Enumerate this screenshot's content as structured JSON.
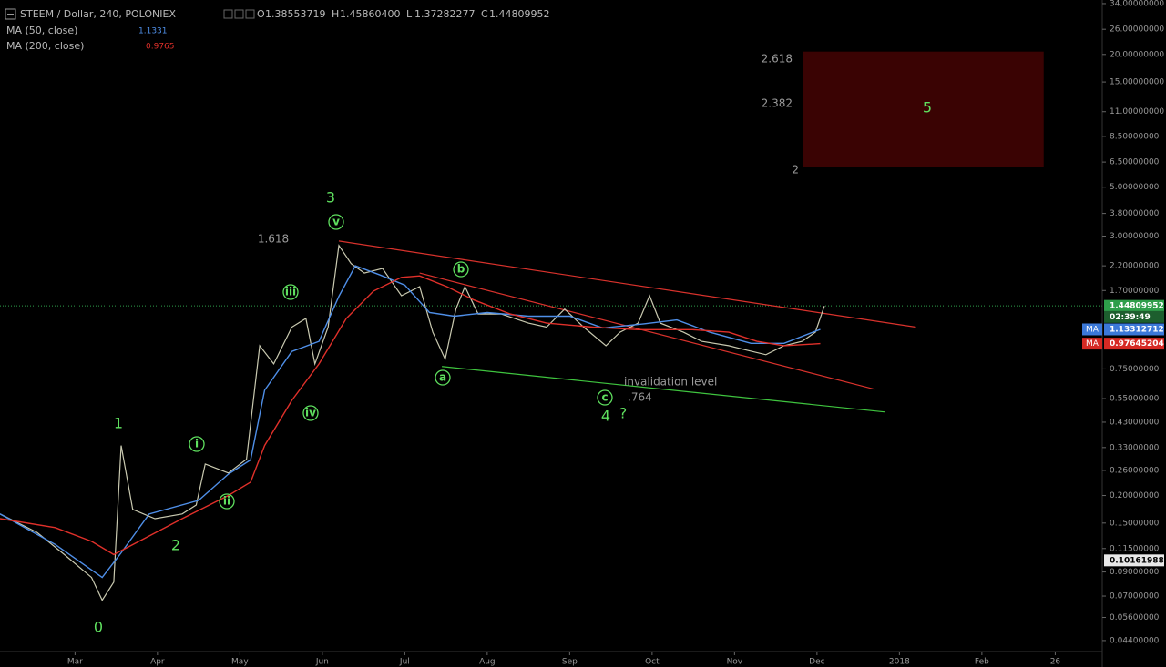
{
  "chart_data": {
    "type": "line",
    "title": "STEEM / Dollar, 240, POLONIEX",
    "ohlc": [
      {
        "label": "O",
        "value": "1.38553719"
      },
      {
        "label": "H",
        "value": "1.45860400"
      },
      {
        "label": "L",
        "value": "1.37282277"
      },
      {
        "label": "C",
        "value": "1.44809952"
      }
    ],
    "log_scale": true,
    "xlim": [
      2.09,
      15.46
    ],
    "ylim": [
      0.0396,
      35.3
    ],
    "xticks": [
      {
        "value": 3,
        "label": "Mar"
      },
      {
        "value": 4,
        "label": "Apr"
      },
      {
        "value": 5,
        "label": "May"
      },
      {
        "value": 6,
        "label": "Jun"
      },
      {
        "value": 7,
        "label": "Jul"
      },
      {
        "value": 8,
        "label": "Aug"
      },
      {
        "value": 9,
        "label": "Sep"
      },
      {
        "value": 10,
        "label": "Oct"
      },
      {
        "value": 11,
        "label": "Nov"
      },
      {
        "value": 12,
        "label": "Dec"
      },
      {
        "value": 13,
        "label": "2018"
      },
      {
        "value": 14,
        "label": "Feb"
      },
      {
        "value": 14.89,
        "label": "26"
      }
    ],
    "yticks": [
      {
        "value": 34,
        "label": "34.00000000"
      },
      {
        "value": 26,
        "label": "26.00000000"
      },
      {
        "value": 20,
        "label": "20.00000000"
      },
      {
        "value": 15,
        "label": "15.00000000"
      },
      {
        "value": 11,
        "label": "11.00000000"
      },
      {
        "value": 8.5,
        "label": "8.50000000"
      },
      {
        "value": 6.5,
        "label": "6.50000000"
      },
      {
        "value": 5,
        "label": "5.00000000"
      },
      {
        "value": 3.8,
        "label": "3.80000000"
      },
      {
        "value": 3,
        "label": "3.00000000"
      },
      {
        "value": 2.2,
        "label": "2.20000000"
      },
      {
        "value": 1.7,
        "label": "1.70000000"
      },
      {
        "value": 0.75,
        "label": "0.75000000"
      },
      {
        "value": 0.55,
        "label": "0.55000000"
      },
      {
        "value": 0.43,
        "label": "0.43000000"
      },
      {
        "value": 0.33,
        "label": "0.33000000"
      },
      {
        "value": 0.26,
        "label": "0.26000000"
      },
      {
        "value": 0.2,
        "label": "0.20000000"
      },
      {
        "value": 0.15,
        "label": "0.15000000"
      },
      {
        "value": 0.115,
        "label": "0.11500000"
      },
      {
        "value": 0.09,
        "label": "0.09000000"
      },
      {
        "value": 0.07,
        "label": "0.07000000"
      },
      {
        "value": 0.056,
        "label": "0.05600000"
      },
      {
        "value": 0.044,
        "label": "0.04400000"
      }
    ],
    "series": [
      {
        "color": "#c9c9b0",
        "x": [
          2.09,
          2.54,
          2.87,
          3.2,
          3.33,
          3.47,
          3.56,
          3.7,
          3.97,
          4.3,
          4.47,
          4.58,
          4.86,
          5.08,
          5.24,
          5.41,
          5.63,
          5.8,
          5.91,
          6.07,
          6.2,
          6.35,
          6.51,
          6.73,
          6.96,
          7.18,
          7.34,
          7.49,
          7.62,
          7.73,
          7.89,
          8.17,
          8.5,
          8.72,
          8.94,
          9.17,
          9.44,
          9.61,
          9.83,
          9.97,
          10.1,
          10.38,
          10.6,
          10.93,
          11.16,
          11.38,
          11.6,
          11.82,
          11.98,
          12.09
        ],
        "values": [
          0.165,
          0.136,
          0.108,
          0.085,
          0.067,
          0.081,
          0.337,
          0.173,
          0.157,
          0.165,
          0.181,
          0.278,
          0.253,
          0.292,
          0.956,
          0.79,
          1.16,
          1.27,
          0.79,
          1.16,
          2.72,
          2.25,
          2.04,
          2.14,
          1.61,
          1.77,
          1.1,
          0.83,
          1.4,
          1.77,
          1.33,
          1.33,
          1.21,
          1.16,
          1.4,
          1.16,
          0.956,
          1.1,
          1.21,
          1.61,
          1.21,
          1.1,
          1,
          0.956,
          0.91,
          0.87,
          0.956,
          1,
          1.1,
          1.448
        ]
      },
      {
        "name": "MA (50, close)",
        "color": "#4f8fe8",
        "value_label": "1.1331",
        "x": [
          2.09,
          2.76,
          3.33,
          3.56,
          3.9,
          4.5,
          4.86,
          5.13,
          5.3,
          5.63,
          5.96,
          6.2,
          6.4,
          6.7,
          7,
          7.3,
          7.6,
          8,
          8.5,
          9,
          9.4,
          9.9,
          10.3,
          10.7,
          11.2,
          11.6,
          12.04
        ],
        "values": [
          0.165,
          0.12,
          0.085,
          0.11,
          0.165,
          0.19,
          0.25,
          0.29,
          0.6,
          0.9,
          1,
          1.6,
          2.2,
          2,
          1.8,
          1.35,
          1.3,
          1.35,
          1.3,
          1.3,
          1.15,
          1.2,
          1.25,
          1.1,
          0.98,
          0.98,
          1.1331
        ]
      },
      {
        "name": "MA (200, close)",
        "color": "#e0302a",
        "value_label": "0.9765",
        "x": [
          2.09,
          2.76,
          3.2,
          3.47,
          4.3,
          4.86,
          5.13,
          5.3,
          5.63,
          5.96,
          6.29,
          6.62,
          6.96,
          7.18,
          7.51,
          7.84,
          8.28,
          8.72,
          9.28,
          9.83,
          10.49,
          10.93,
          11.27,
          11.6,
          12.04
        ],
        "values": [
          0.157,
          0.143,
          0.124,
          0.108,
          0.157,
          0.2,
          0.23,
          0.337,
          0.54,
          0.79,
          1.27,
          1.69,
          1.95,
          1.98,
          1.77,
          1.54,
          1.33,
          1.21,
          1.16,
          1.13,
          1.13,
          1.1,
          1,
          0.956,
          0.9765
        ]
      }
    ],
    "trendlines": [
      {
        "color": "#d9322c",
        "x": [
          6.2,
          13.2
        ],
        "y": [
          2.85,
          1.16
        ]
      },
      {
        "color": "#d9322c",
        "x": [
          7.18,
          12.7
        ],
        "y": [
          2.04,
          0.606
        ]
      },
      {
        "color": "#3fc43f",
        "x": [
          7.45,
          12.83
        ],
        "y": [
          0.769,
          0.478
        ]
      }
    ],
    "target_zone": {
      "color": "#3a0303",
      "x": [
        11.83,
        14.75
      ],
      "y": [
        6.15,
        20.6
      ]
    },
    "axis_markers": [
      {
        "label": "1.44809952",
        "value": 1.448,
        "color": "#2e9e4a",
        "price_line": true
      },
      {
        "label": "02:39:49",
        "value": 1.29,
        "color": "#1d5e2e"
      },
      {
        "tag": "MA",
        "label": "1.13312712",
        "value": 1.133,
        "color": "#3b78d8"
      },
      {
        "tag": "MA",
        "label": "0.97645204",
        "value": 0.9765,
        "color": "#d62a24"
      },
      {
        "label": "0.10161988",
        "value": 0.1016,
        "color": "#e8e8e8"
      }
    ],
    "annotations": {
      "waves": [
        "0",
        "1",
        "2",
        "3",
        "4",
        "5"
      ],
      "subwaves": [
        "i",
        "ii",
        "iii",
        "iv",
        "v",
        "a",
        "b",
        "c"
      ],
      "question": "?",
      "fib_label": "1.618",
      "invalidation": "invalidation level",
      "invalidation_value": ".764",
      "target_fibs": [
        "2.618",
        "2.382",
        "2"
      ]
    }
  }
}
